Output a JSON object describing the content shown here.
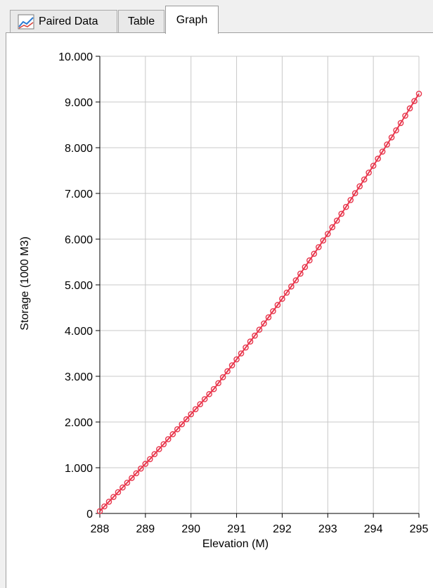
{
  "tabs": [
    {
      "label": "Paired Data",
      "icon": "line-graph-icon"
    },
    {
      "label": "Table"
    },
    {
      "label": "Graph",
      "active": true
    }
  ],
  "colors": {
    "series": "#e8364c",
    "grid": "#c8c8c8",
    "axis": "#000000"
  },
  "chart_data": {
    "type": "line",
    "xlabel": "Elevation (M)",
    "ylabel": "Storage (1000 M3)",
    "xlim": [
      288,
      295
    ],
    "ylim": [
      0,
      10
    ],
    "xticks": [
      "288",
      "289",
      "290",
      "291",
      "292",
      "293",
      "294",
      "295"
    ],
    "yticks": [
      "0",
      "1.000",
      "2.000",
      "3.000",
      "4.000",
      "5.000",
      "6.000",
      "7.000",
      "8.000",
      "9.000",
      "10.000"
    ],
    "grid": true,
    "marker": "circle",
    "series": [
      {
        "x": [
          288.0,
          288.1,
          288.2,
          288.3,
          288.4,
          288.5,
          288.6,
          288.7,
          288.8,
          288.9,
          289.0,
          289.1,
          289.2,
          289.3,
          289.4,
          289.5,
          289.6,
          289.7,
          289.8,
          289.9,
          290.0,
          290.1,
          290.2,
          290.3,
          290.4,
          290.5,
          290.6,
          290.7,
          290.8,
          290.9,
          291.0,
          291.1,
          291.2,
          291.3,
          291.4,
          291.5,
          291.6,
          291.7,
          291.8,
          291.9,
          292.0,
          292.1,
          292.2,
          292.3,
          292.4,
          292.5,
          292.6,
          292.7,
          292.8,
          292.9,
          293.0,
          293.1,
          293.2,
          293.3,
          293.4,
          293.5,
          293.6,
          293.7,
          293.8,
          293.9,
          294.0,
          294.1,
          294.2,
          294.3,
          294.4,
          294.5,
          294.6,
          294.7,
          294.8,
          294.9,
          295.0
        ],
        "values": [
          0.05,
          0.154,
          0.257,
          0.361,
          0.465,
          0.568,
          0.672,
          0.775,
          0.879,
          0.982,
          1.085,
          1.188,
          1.297,
          1.406,
          1.515,
          1.624,
          1.733,
          1.842,
          1.951,
          2.06,
          2.17,
          2.28,
          2.39,
          2.5,
          2.61,
          2.72,
          2.85,
          2.98,
          3.11,
          3.24,
          3.37,
          3.5,
          3.63,
          3.76,
          3.89,
          4.02,
          4.155,
          4.29,
          4.425,
          4.56,
          4.695,
          4.83,
          4.965,
          5.1,
          5.245,
          5.39,
          5.535,
          5.68,
          5.825,
          5.97,
          6.115,
          6.26,
          6.405,
          6.555,
          6.705,
          6.855,
          7.005,
          7.155,
          7.305,
          7.455,
          7.605,
          7.76,
          7.915,
          8.07,
          8.225,
          8.38,
          8.54,
          8.7,
          8.86,
          9.02,
          9.18
        ]
      }
    ]
  }
}
